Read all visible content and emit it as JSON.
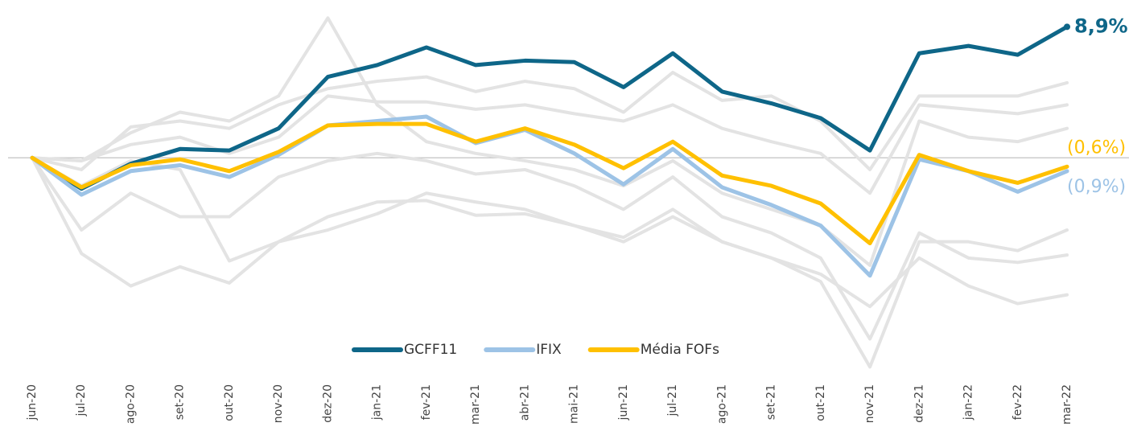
{
  "chart_data": {
    "type": "line",
    "categories": [
      "jun-20",
      "jul-20",
      "ago-20",
      "set-20",
      "out-20",
      "nov-20",
      "dez-20",
      "jan-21",
      "fev-21",
      "mar-21",
      "abr-21",
      "mai-21",
      "jun-21",
      "jul-21",
      "ago-21",
      "set-21",
      "out-21",
      "nov-21",
      "dez-21",
      "jan-22",
      "fev-22",
      "mar-22"
    ],
    "ylim": [
      -14.4,
      9.9
    ],
    "series": [
      {
        "color": "#e3e3e3",
        "values": [
          0,
          -0.2,
          1.7,
          3.1,
          2.5,
          4.2,
          9.5,
          3.6,
          1.1,
          0.3,
          -0.2,
          -0.8,
          -1.9,
          -0.2,
          -2.4,
          -3.5,
          -4.6,
          -7.3,
          2.5,
          1.4,
          1.1,
          2.0
        ]
      },
      {
        "color": "#e3e3e3",
        "values": [
          0,
          -6.5,
          -8.7,
          -7.4,
          -8.5,
          -5.7,
          -4.0,
          -3.0,
          -2.9,
          -3.9,
          -3.8,
          -4.6,
          -5.4,
          -3.5,
          -5.7,
          -6.8,
          -7.9,
          -10.1,
          -6.8,
          -8.7,
          -9.9,
          -9.3
        ]
      },
      {
        "color": "#e3e3e3",
        "values": [
          0,
          -4.9,
          -2.4,
          -4.0,
          -4.0,
          -1.3,
          -0.2,
          0.3,
          -0.2,
          -1.1,
          -0.8,
          -1.9,
          -3.5,
          -1.3,
          -4.0,
          -5.1,
          -6.8,
          -12.3,
          -5.1,
          -6.8,
          -7.1,
          -6.6
        ]
      },
      {
        "color": "#e3e3e3",
        "values": [
          0,
          -0.8,
          2.1,
          2.5,
          2.0,
          3.6,
          4.7,
          5.2,
          5.5,
          4.5,
          5.2,
          4.7,
          3.1,
          5.8,
          3.9,
          4.2,
          2.5,
          -0.8,
          4.2,
          4.2,
          4.2,
          5.1
        ]
      },
      {
        "color": "#e3e3e3",
        "values": [
          0,
          -1.9,
          -0.2,
          -0.8,
          -7.0,
          -5.7,
          -4.9,
          -3.8,
          -2.4,
          -3.0,
          -3.5,
          -4.6,
          -5.7,
          -4.0,
          -5.7,
          -6.8,
          -8.4,
          -14.2,
          -5.7,
          -5.7,
          -6.3,
          -4.9
        ]
      },
      {
        "color": "#e3e3e3",
        "values": [
          0,
          -0.2,
          0.9,
          1.4,
          0.3,
          1.4,
          4.2,
          3.8,
          3.8,
          3.3,
          3.6,
          3.0,
          2.5,
          3.6,
          2.0,
          1.1,
          0.3,
          -2.4,
          3.6,
          3.3,
          3.0,
          3.6
        ]
      },
      {
        "name": "GCFF11",
        "color": "#0e6688",
        "values": [
          0,
          -2.1,
          -0.4,
          0.6,
          0.5,
          2.0,
          5.5,
          6.3,
          7.5,
          6.3,
          6.6,
          6.5,
          4.8,
          7.1,
          4.5,
          3.7,
          2.7,
          0.5,
          7.1,
          7.6,
          7.0,
          8.9
        ],
        "value_labels": [
          null,
          null,
          null,
          null,
          null,
          null,
          null,
          null,
          null,
          null,
          null,
          null,
          null,
          null,
          null,
          null,
          null,
          null,
          null,
          null,
          null,
          "8,9%"
        ]
      },
      {
        "name": "IFIX",
        "color": "#9dc3e6",
        "values": [
          0,
          -2.5,
          -0.9,
          -0.5,
          -1.3,
          0.2,
          2.2,
          2.5,
          2.8,
          1.0,
          1.9,
          0.3,
          -1.8,
          0.6,
          -2.0,
          -3.2,
          -4.6,
          -8.0,
          -0.1,
          -0.9,
          -2.3,
          -0.9
        ],
        "value_labels": [
          null,
          null,
          null,
          null,
          null,
          null,
          null,
          null,
          null,
          null,
          null,
          null,
          null,
          null,
          null,
          null,
          null,
          null,
          null,
          null,
          null,
          "(0,9%)"
        ]
      },
      {
        "name": "Média FOFs",
        "color": "#ffc000",
        "values": [
          0,
          -2.0,
          -0.5,
          -0.1,
          -0.9,
          0.4,
          2.2,
          2.3,
          2.3,
          1.1,
          2.0,
          0.9,
          -0.7,
          1.1,
          -1.2,
          -1.9,
          -3.1,
          -5.8,
          0.2,
          -0.9,
          -1.7,
          -0.6
        ],
        "value_labels": [
          null,
          null,
          null,
          null,
          null,
          null,
          null,
          null,
          null,
          null,
          null,
          null,
          null,
          null,
          null,
          null,
          null,
          null,
          null,
          null,
          null,
          "(0,6%)"
        ]
      }
    ]
  }
}
